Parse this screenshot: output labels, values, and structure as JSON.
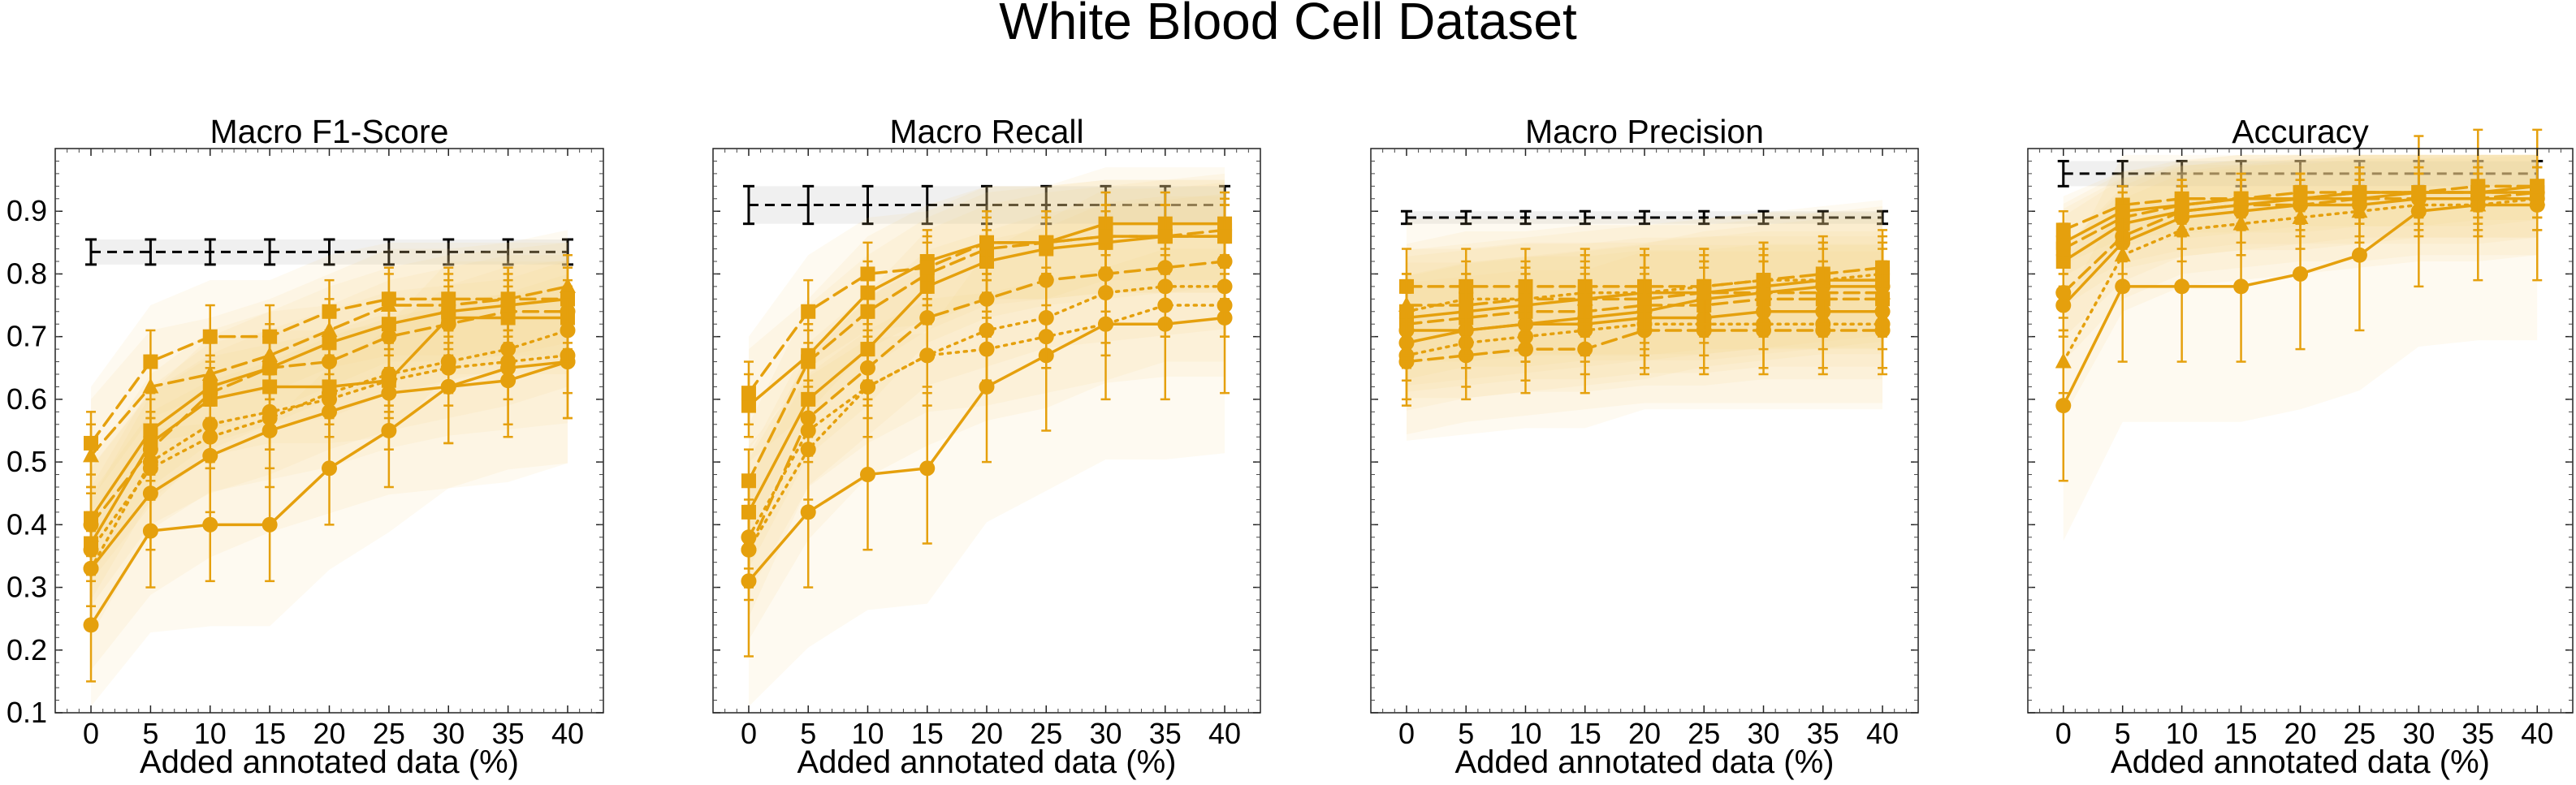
{
  "figure": {
    "title": "White Blood Cell Dataset"
  },
  "colors": {
    "series": "#e5a00d",
    "band": "#f5d58c",
    "reference": "#000000",
    "reference_band": "#e6e6e6"
  },
  "chart_data": [
    {
      "type": "line",
      "title": "Macro F1-Score",
      "xlabel": "Added annotated data (%)",
      "ylabel": "",
      "x": [
        0,
        5,
        10,
        15,
        20,
        25,
        30,
        35,
        40
      ],
      "xlim": [
        -3,
        43
      ],
      "ylim": [
        0.1,
        1.0
      ],
      "yticks": [
        0.1,
        0.2,
        0.3,
        0.4,
        0.5,
        0.6,
        0.7,
        0.8,
        0.9
      ],
      "show_yticklabels": true,
      "reference": {
        "values": [
          0.835,
          0.835,
          0.835,
          0.835,
          0.835,
          0.835,
          0.835,
          0.835,
          0.835
        ],
        "err": 0.02
      },
      "series": [
        {
          "values": [
            0.24,
            0.39,
            0.4,
            0.4,
            0.49,
            0.55,
            0.62,
            0.63,
            0.66
          ],
          "err": 0.09,
          "style": "solid",
          "marker": "circle"
        },
        {
          "values": [
            0.33,
            0.45,
            0.51,
            0.55,
            0.58,
            0.61,
            0.62,
            0.65,
            0.66
          ],
          "err": 0.09,
          "style": "solid",
          "marker": "circle"
        },
        {
          "values": [
            0.33,
            0.5,
            0.56,
            0.58,
            0.6,
            0.63,
            0.65,
            0.66,
            0.67
          ],
          "err": 0.06,
          "style": "dotted",
          "marker": "circle"
        },
        {
          "values": [
            0.37,
            0.53,
            0.6,
            0.62,
            0.62,
            0.63,
            0.73,
            0.73,
            0.73
          ],
          "err": 0.05,
          "style": "solid",
          "marker": "square"
        },
        {
          "values": [
            0.4,
            0.52,
            0.61,
            0.65,
            0.66,
            0.7,
            0.72,
            0.74,
            0.74
          ],
          "err": 0.05,
          "style": "dashed",
          "marker": "circle"
        },
        {
          "values": [
            0.41,
            0.55,
            0.62,
            0.65,
            0.69,
            0.72,
            0.74,
            0.75,
            0.76
          ],
          "err": 0.05,
          "style": "solid",
          "marker": "square"
        },
        {
          "values": [
            0.51,
            0.62,
            0.64,
            0.67,
            0.71,
            0.75,
            0.75,
            0.76,
            0.78
          ],
          "err": 0.05,
          "style": "dashed",
          "marker": "triangle"
        },
        {
          "values": [
            0.53,
            0.66,
            0.7,
            0.7,
            0.74,
            0.76,
            0.76,
            0.76,
            0.76
          ],
          "err": 0.05,
          "style": "dashed",
          "marker": "square"
        },
        {
          "values": [
            0.36,
            0.49,
            0.54,
            0.57,
            0.61,
            0.64,
            0.66,
            0.68,
            0.71
          ],
          "err": 0.05,
          "style": "dotted",
          "marker": "circle"
        }
      ]
    },
    {
      "type": "line",
      "title": "Macro Recall",
      "xlabel": "Added annotated data (%)",
      "ylabel": "",
      "x": [
        0,
        5,
        10,
        15,
        20,
        25,
        30,
        35,
        40
      ],
      "xlim": [
        -3,
        43
      ],
      "ylim": [
        0.1,
        1.0
      ],
      "yticks": [
        0.1,
        0.2,
        0.3,
        0.4,
        0.5,
        0.6,
        0.7,
        0.8,
        0.9
      ],
      "show_yticklabels": false,
      "reference": {
        "values": [
          0.91,
          0.91,
          0.91,
          0.91,
          0.91,
          0.91,
          0.91,
          0.91,
          0.91
        ],
        "err": 0.03
      },
      "series": [
        {
          "values": [
            0.31,
            0.42,
            0.48,
            0.49,
            0.62,
            0.67,
            0.72,
            0.72,
            0.73
          ],
          "err": 0.12,
          "style": "solid",
          "marker": "circle"
        },
        {
          "values": [
            0.36,
            0.52,
            0.62,
            0.67,
            0.71,
            0.73,
            0.77,
            0.78,
            0.78
          ],
          "err": 0.08,
          "style": "dotted",
          "marker": "circle"
        },
        {
          "values": [
            0.36,
            0.57,
            0.65,
            0.73,
            0.76,
            0.79,
            0.8,
            0.81,
            0.82
          ],
          "err": 0.06,
          "style": "dashed",
          "marker": "circle"
        },
        {
          "values": [
            0.42,
            0.6,
            0.68,
            0.78,
            0.82,
            0.84,
            0.85,
            0.86,
            0.86
          ],
          "err": 0.05,
          "style": "solid",
          "marker": "square"
        },
        {
          "values": [
            0.47,
            0.66,
            0.74,
            0.8,
            0.84,
            0.85,
            0.86,
            0.86,
            0.87
          ],
          "err": 0.05,
          "style": "dashed",
          "marker": "square"
        },
        {
          "values": [
            0.59,
            0.67,
            0.77,
            0.82,
            0.85,
            0.85,
            0.88,
            0.88,
            0.88
          ],
          "err": 0.05,
          "style": "solid",
          "marker": "square"
        },
        {
          "values": [
            0.61,
            0.74,
            0.8,
            0.81,
            0.85,
            0.85,
            0.86,
            0.86,
            0.86
          ],
          "err": 0.05,
          "style": "dashed",
          "marker": "square"
        },
        {
          "values": [
            0.38,
            0.55,
            0.62,
            0.67,
            0.68,
            0.7,
            0.72,
            0.75,
            0.75
          ],
          "err": 0.05,
          "style": "dotted",
          "marker": "circle"
        }
      ]
    },
    {
      "type": "line",
      "title": "Macro Precision",
      "xlabel": "Added annotated data (%)",
      "ylabel": "",
      "x": [
        0,
        5,
        10,
        15,
        20,
        25,
        30,
        35,
        40
      ],
      "xlim": [
        -3,
        43
      ],
      "ylim": [
        0.1,
        1.0
      ],
      "yticks": [
        0.1,
        0.2,
        0.3,
        0.4,
        0.5,
        0.6,
        0.7,
        0.8,
        0.9
      ],
      "show_yticklabels": false,
      "reference": {
        "values": [
          0.89,
          0.89,
          0.89,
          0.89,
          0.89,
          0.89,
          0.89,
          0.89,
          0.89
        ],
        "err": 0.01
      },
      "series": [
        {
          "values": [
            0.66,
            0.67,
            0.68,
            0.68,
            0.71,
            0.71,
            0.71,
            0.71,
            0.71
          ],
          "err": 0.07,
          "style": "dashed",
          "marker": "circle"
        },
        {
          "values": [
            0.67,
            0.69,
            0.7,
            0.71,
            0.72,
            0.72,
            0.72,
            0.72,
            0.72
          ],
          "err": 0.07,
          "style": "dotted",
          "marker": "circle"
        },
        {
          "values": [
            0.69,
            0.71,
            0.72,
            0.72,
            0.73,
            0.73,
            0.74,
            0.74,
            0.74
          ],
          "err": 0.06,
          "style": "solid",
          "marker": "circle"
        },
        {
          "values": [
            0.71,
            0.71,
            0.72,
            0.73,
            0.74,
            0.76,
            0.77,
            0.78,
            0.78
          ],
          "err": 0.06,
          "style": "solid",
          "marker": "circle"
        },
        {
          "values": [
            0.72,
            0.73,
            0.74,
            0.74,
            0.75,
            0.75,
            0.76,
            0.76,
            0.76
          ],
          "err": 0.06,
          "style": "dashed",
          "marker": "square"
        },
        {
          "values": [
            0.73,
            0.74,
            0.75,
            0.76,
            0.77,
            0.77,
            0.78,
            0.79,
            0.79
          ],
          "err": 0.06,
          "style": "solid",
          "marker": "square"
        },
        {
          "values": [
            0.74,
            0.76,
            0.76,
            0.77,
            0.77,
            0.78,
            0.79,
            0.79,
            0.8
          ],
          "err": 0.06,
          "style": "dotted",
          "marker": "square"
        },
        {
          "values": [
            0.78,
            0.78,
            0.78,
            0.78,
            0.78,
            0.78,
            0.79,
            0.8,
            0.81
          ],
          "err": 0.06,
          "style": "dashed",
          "marker": "square"
        },
        {
          "values": [
            0.75,
            0.75,
            0.76,
            0.76,
            0.76,
            0.77,
            0.77,
            0.77,
            0.77
          ],
          "err": 0.05,
          "style": "dashed",
          "marker": "triangle"
        }
      ]
    },
    {
      "type": "line",
      "title": "Accuracy",
      "xlabel": "Added annotated data (%)",
      "ylabel": "",
      "x": [
        0,
        5,
        10,
        15,
        20,
        25,
        30,
        35,
        40
      ],
      "xlim": [
        -3,
        43
      ],
      "ylim": [
        0.1,
        1.0
      ],
      "yticks": [
        0.1,
        0.2,
        0.3,
        0.4,
        0.5,
        0.6,
        0.7,
        0.8,
        0.9
      ],
      "show_yticklabels": false,
      "reference": {
        "values": [
          0.96,
          0.96,
          0.96,
          0.96,
          0.96,
          0.96,
          0.96,
          0.96,
          0.96
        ],
        "err": 0.02
      },
      "series": [
        {
          "values": [
            0.59,
            0.78,
            0.78,
            0.78,
            0.8,
            0.83,
            0.9,
            0.91,
            0.91
          ],
          "err": 0.12,
          "style": "solid",
          "marker": "circle"
        },
        {
          "values": [
            0.66,
            0.83,
            0.87,
            0.88,
            0.89,
            0.9,
            0.91,
            0.91,
            0.92
          ],
          "err": 0.05,
          "style": "dotted",
          "marker": "triangle"
        },
        {
          "values": [
            0.75,
            0.85,
            0.89,
            0.9,
            0.91,
            0.91,
            0.92,
            0.92,
            0.92
          ],
          "err": 0.05,
          "style": "solid",
          "marker": "circle"
        },
        {
          "values": [
            0.77,
            0.86,
            0.9,
            0.91,
            0.91,
            0.92,
            0.92,
            0.92,
            0.93
          ],
          "err": 0.04,
          "style": "dashed",
          "marker": "circle"
        },
        {
          "values": [
            0.82,
            0.88,
            0.9,
            0.91,
            0.92,
            0.92,
            0.93,
            0.93,
            0.93
          ],
          "err": 0.04,
          "style": "solid",
          "marker": "square"
        },
        {
          "values": [
            0.84,
            0.89,
            0.91,
            0.92,
            0.92,
            0.93,
            0.93,
            0.93,
            0.93
          ],
          "err": 0.04,
          "style": "dashed",
          "marker": "square"
        },
        {
          "values": [
            0.87,
            0.91,
            0.92,
            0.92,
            0.93,
            0.93,
            0.93,
            0.94,
            0.94
          ],
          "err": 0.03,
          "style": "dashed",
          "marker": "square"
        },
        {
          "values": [
            0.85,
            0.9,
            0.91,
            0.92,
            0.92,
            0.93,
            0.93,
            0.93,
            0.94
          ],
          "err": 0.03,
          "style": "solid",
          "marker": "square"
        }
      ]
    }
  ]
}
